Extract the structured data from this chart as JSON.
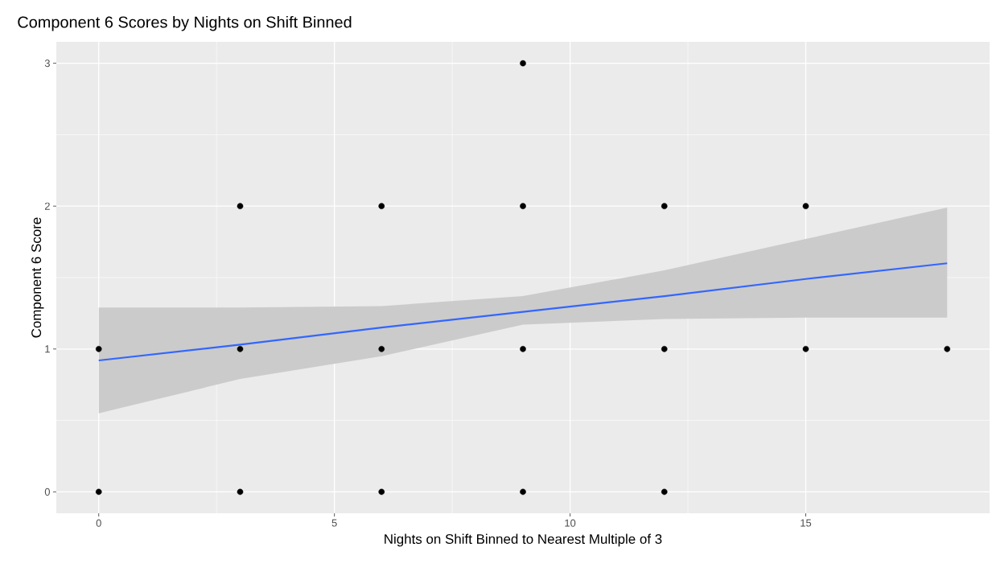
{
  "chart_data": {
    "type": "scatter",
    "title": "Component 6 Scores by Nights on Shift Binned",
    "xlabel": "Nights on Shift Binned to Nearest Multiple of 3",
    "ylabel": "Component 6 Score",
    "xlim": [
      -0.9,
      18.9
    ],
    "ylim": [
      -0.15,
      3.15
    ],
    "xticks": [
      0,
      5,
      10,
      15
    ],
    "yticks": [
      0,
      1,
      2,
      3
    ],
    "grid": true,
    "series": [
      {
        "marker": "circle",
        "color": "#000000",
        "x": [
          0,
          0,
          3,
          3,
          3,
          6,
          6,
          6,
          9,
          9,
          9,
          9,
          12,
          12,
          12,
          15,
          15,
          18
        ],
        "values": [
          1,
          0,
          2,
          1,
          0,
          2,
          1,
          0,
          3,
          2,
          1,
          0,
          2,
          1,
          0,
          2,
          1,
          1
        ]
      },
      {
        "type": "line",
        "marker": "none",
        "color": "#3366ff",
        "x": [
          0,
          3,
          6,
          9,
          12,
          15,
          18
        ],
        "values": [
          0.92,
          1.03,
          1.15,
          1.26,
          1.37,
          1.49,
          1.6
        ],
        "lower": [
          0.55,
          0.79,
          0.95,
          1.17,
          1.21,
          1.22,
          1.22
        ],
        "upper": [
          1.29,
          1.29,
          1.3,
          1.37,
          1.55,
          1.77,
          1.99
        ]
      }
    ]
  }
}
